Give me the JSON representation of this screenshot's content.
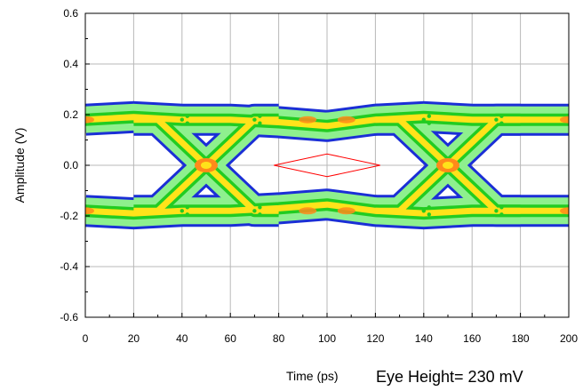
{
  "chart_data": {
    "type": "eye-diagram",
    "title": "",
    "xlabel": "Time (ps)",
    "ylabel": "Amplitude (V)",
    "xlim": [
      0,
      200
    ],
    "ylim": [
      -0.6,
      0.6
    ],
    "xticks": [
      0,
      20,
      40,
      60,
      80,
      100,
      120,
      140,
      160,
      180,
      200
    ],
    "xtick_labels": [
      "0",
      "20",
      "40",
      "60",
      "80",
      "100",
      "120",
      "140",
      "160",
      "180",
      "200"
    ],
    "yticks": [
      0.6,
      0.4,
      0.2,
      0.0,
      -0.2,
      -0.4,
      -0.6
    ],
    "ytick_labels": [
      "0.6",
      "0.4",
      "0.2",
      "0.0",
      "-0.2",
      "-0.4",
      "-0.6"
    ],
    "grid": true,
    "annotation": "Eye Height= 230 mV",
    "crossing_points": [
      {
        "x": 50,
        "y": 0.0
      },
      {
        "x": 150,
        "y": 0.0
      }
    ],
    "logic_levels": {
      "high": 0.18,
      "low": -0.18
    },
    "eye_mask": [
      {
        "x": 78,
        "y": 0.0
      },
      {
        "x": 100,
        "y": 0.045
      },
      {
        "x": 122,
        "y": 0.0
      },
      {
        "x": 100,
        "y": -0.045
      }
    ],
    "colors": {
      "envelope": "#1b2fd6",
      "density_low": "#8ef08e",
      "density_mid": "#22cc22",
      "density_high": "#ffe31a",
      "density_peak": "#ff8a1a",
      "mask": "#ff0000",
      "grid": "#b8b8b8"
    }
  }
}
